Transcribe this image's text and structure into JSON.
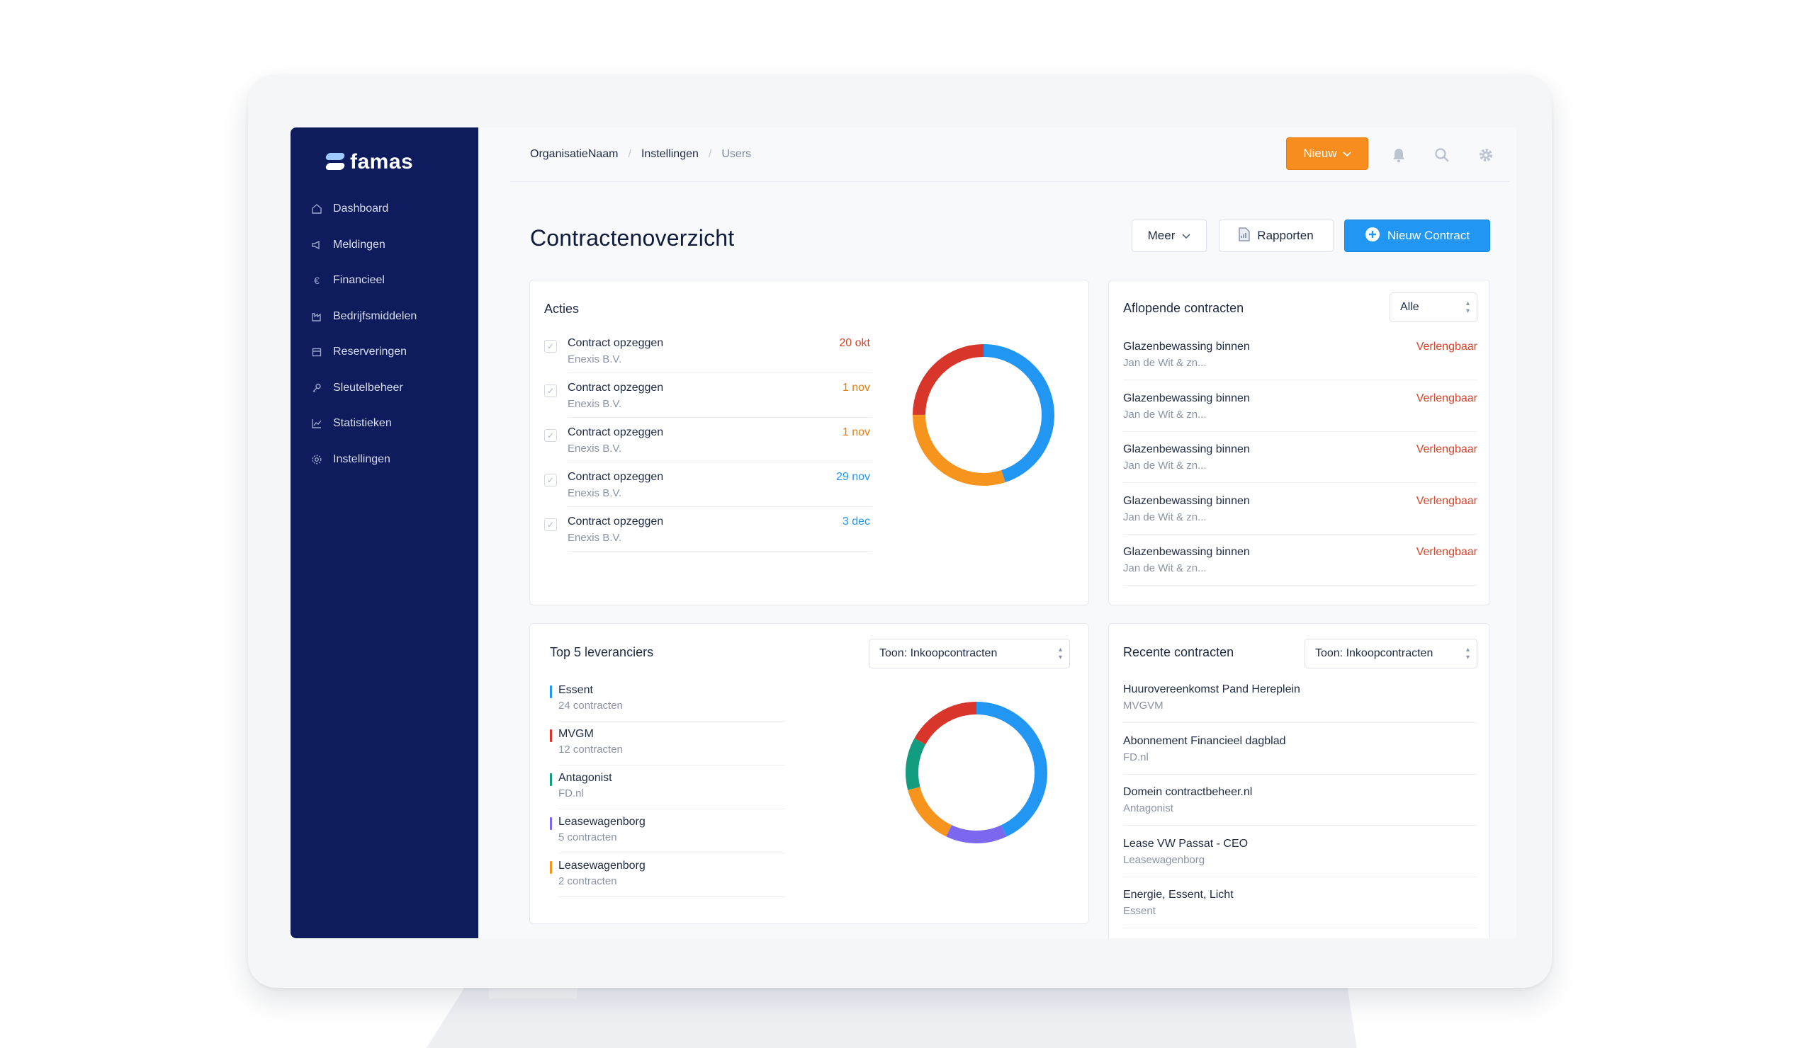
{
  "app": {
    "name": "famas"
  },
  "sidebar": {
    "items": [
      {
        "label": "Dashboard",
        "icon": "home-icon"
      },
      {
        "label": "Meldingen",
        "icon": "megaphone-icon"
      },
      {
        "label": "Financieel",
        "icon": "euro-icon"
      },
      {
        "label": "Bedrijfsmiddelen",
        "icon": "factory-icon"
      },
      {
        "label": "Reserveringen",
        "icon": "calendar-icon"
      },
      {
        "label": "Sleutelbeheer",
        "icon": "key-icon"
      },
      {
        "label": "Statistieken",
        "icon": "chart-icon"
      },
      {
        "label": "Instellingen",
        "icon": "gear-icon"
      }
    ]
  },
  "breadcrumb": {
    "items": [
      "OrganisatieNaam",
      "Instellingen",
      "Users"
    ]
  },
  "header": {
    "new_label": "Nieuw"
  },
  "page": {
    "title": "Contractenoverzicht",
    "meer_label": "Meer",
    "rapporten_label": "Rapporten",
    "nieuw_contract_label": "Nieuw Contract"
  },
  "acties": {
    "title": "Acties",
    "items": [
      {
        "title": "Contract opzeggen",
        "sub": "Enexis B.V.",
        "date": "20 okt",
        "color": "#d8432b"
      },
      {
        "title": "Contract opzeggen",
        "sub": "Enexis B.V.",
        "date": "1 nov",
        "color": "#e57c10"
      },
      {
        "title": "Contract opzeggen",
        "sub": "Enexis B.V.",
        "date": "1 nov",
        "color": "#e57c10"
      },
      {
        "title": "Contract opzeggen",
        "sub": "Enexis B.V.",
        "date": "29 nov",
        "color": "#2196f3"
      },
      {
        "title": "Contract opzeggen",
        "sub": "Enexis B.V.",
        "date": "3 dec",
        "color": "#2196f3"
      }
    ],
    "donut": [
      {
        "value": 0.45,
        "color": "#2196f3"
      },
      {
        "value": 0.3,
        "color": "#f7941d"
      },
      {
        "value": 0.25,
        "color": "#d8352b"
      }
    ]
  },
  "aflopend": {
    "title": "Aflopende contracten",
    "filter": "Alle",
    "items": [
      {
        "title": "Glazenbewassing binnen",
        "sub": "Jan de Wit & zn...",
        "status": "Verlengbaar"
      },
      {
        "title": "Glazenbewassing binnen",
        "sub": "Jan de Wit & zn...",
        "status": "Verlengbaar"
      },
      {
        "title": "Glazenbewassing binnen",
        "sub": "Jan de Wit & zn...",
        "status": "Verlengbaar"
      },
      {
        "title": "Glazenbewassing binnen",
        "sub": "Jan de Wit & zn...",
        "status": "Verlengbaar"
      },
      {
        "title": "Glazenbewassing binnen",
        "sub": "Jan de Wit & zn...",
        "status": "Verlengbaar"
      }
    ]
  },
  "leveranciers": {
    "title": "Top 5 leveranciers",
    "filter": "Toon: Inkoopcontracten",
    "items": [
      {
        "name": "Essent",
        "sub": "24 contracten",
        "color": "#2196f3"
      },
      {
        "name": "MVGM",
        "sub": "12 contracten",
        "color": "#d8352b"
      },
      {
        "name": "Antagonist",
        "sub": "FD.nl",
        "color": "#119b7f"
      },
      {
        "name": "Leasewagenborg",
        "sub": "5 contracten",
        "color": "#7b68ee"
      },
      {
        "name": "Leasewagenborg",
        "sub": "2 contracten",
        "color": "#f7941d"
      }
    ],
    "donut": [
      {
        "value": 0.43,
        "color": "#2196f3"
      },
      {
        "value": 0.14,
        "color": "#7b68ee"
      },
      {
        "value": 0.14,
        "color": "#f7941d"
      },
      {
        "value": 0.12,
        "color": "#119b7f"
      },
      {
        "value": 0.17,
        "color": "#d8352b"
      }
    ]
  },
  "recent": {
    "title": "Recente contracten",
    "filter": "Toon: Inkoopcontracten",
    "items": [
      {
        "title": "Huurovereenkomst Pand Hereplein",
        "sub": "MVGVM"
      },
      {
        "title": "Abonnement Financieel dagblad",
        "sub": "FD.nl"
      },
      {
        "title": "Domein contractbeheer.nl",
        "sub": "Antagonist"
      },
      {
        "title": "Lease VW Passat - CEO",
        "sub": "Leasewagenborg"
      },
      {
        "title": "Energie, Essent, Licht",
        "sub": "Essent"
      }
    ]
  }
}
